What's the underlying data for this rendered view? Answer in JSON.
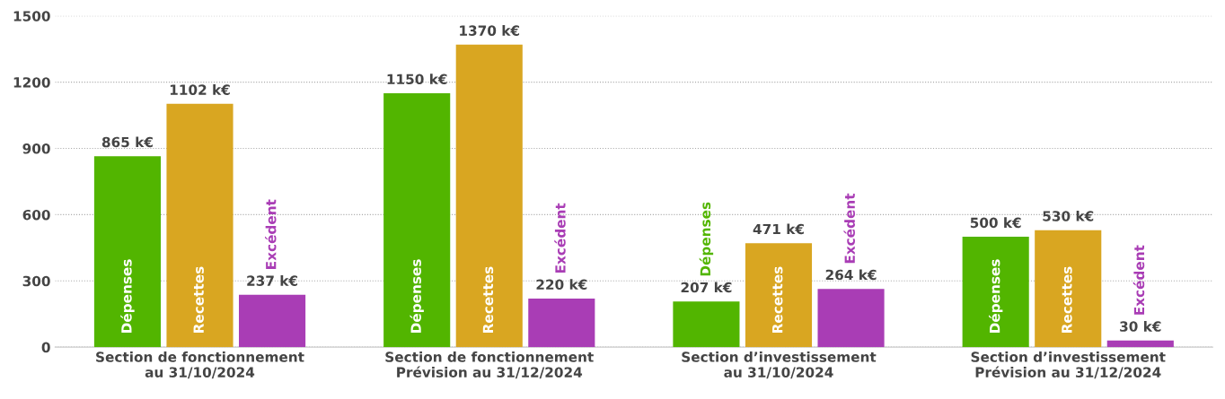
{
  "chart_data": {
    "type": "bar",
    "categories": [
      "Section de fonctionnement\nau 31/10/2024",
      "Section de fonctionnement\nPrévision au 31/12/2024",
      "Section d’investissement\nau 31/10/2024",
      "Section d’investissement\nPrévision au 31/12/2024"
    ],
    "series": [
      {
        "name": "Dépenses",
        "color": "#52b500",
        "values": [
          865,
          1150,
          207,
          500
        ],
        "value_labels": [
          "865 k€",
          "1150 k€",
          "207 k€",
          "500 k€"
        ]
      },
      {
        "name": "Recettes",
        "color": "#d9a621",
        "values": [
          1102,
          1370,
          471,
          530
        ],
        "value_labels": [
          "1102 k€",
          "1370 k€",
          "471 k€",
          "530 k€"
        ]
      },
      {
        "name": "Excédent",
        "color": "#a93db5",
        "values": [
          237,
          220,
          264,
          30
        ],
        "value_labels": [
          "237 k€",
          "220 k€",
          "264 k€",
          "30 k€"
        ]
      }
    ],
    "ylim": [
      0,
      1500
    ],
    "yticks": [
      0,
      300,
      600,
      900,
      1200,
      1500
    ],
    "grid": "y",
    "legend": false
  }
}
